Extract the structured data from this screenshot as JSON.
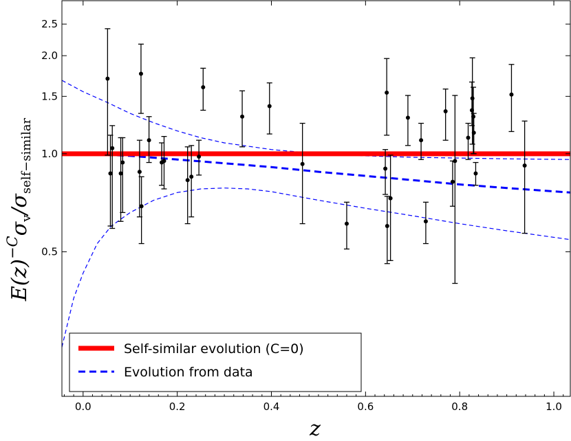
{
  "chart_data": {
    "type": "scatter",
    "xlabel": "z",
    "ylabel_parts": {
      "base": "E(z)",
      "exponent": "−C",
      "sigma1": "σ",
      "sub1": "v",
      "slash": "/",
      "sigma2": "σ",
      "sub2": "self−similar"
    },
    "x_range": [
      -0.045,
      1.035
    ],
    "y_range": [
      0.18,
      2.95
    ],
    "y_scale": "log",
    "x_ticks": [
      0.0,
      0.2,
      0.4,
      0.6,
      0.8,
      1.0
    ],
    "x_tick_labels": [
      "0.0",
      "0.2",
      "0.4",
      "0.6",
      "0.8",
      "1.0"
    ],
    "y_ticks": [
      0.5,
      1.0,
      1.5,
      2.0,
      2.5
    ],
    "y_tick_labels": [
      "0.5",
      "1.0",
      "1.5",
      "2.0",
      "2.5"
    ],
    "legend": {
      "position": "lower-left",
      "entries": [
        {
          "label": "Self-similar evolution (C=0)",
          "color": "#ff0000",
          "style": "solid"
        },
        {
          "label": "Evolution from data",
          "color": "#0000ff",
          "style": "dashed"
        }
      ]
    },
    "self_similar_line": {
      "y": 1.0,
      "color": "#ff0000"
    },
    "evolution_curves": {
      "color": "#0000ff",
      "central": {
        "x": [
          -0.045,
          0.0,
          0.1,
          0.2,
          0.3,
          0.4,
          0.5,
          0.6,
          0.7,
          0.8,
          0.9,
          1.035
        ],
        "y": [
          1.0,
          1.0,
          0.985,
          0.96,
          0.935,
          0.91,
          0.88,
          0.855,
          0.83,
          0.805,
          0.785,
          0.76
        ]
      },
      "upper": {
        "x": [
          -0.045,
          0.0,
          0.05,
          0.1,
          0.15,
          0.2,
          0.25,
          0.3,
          0.4,
          0.5,
          0.6,
          0.7,
          0.8,
          0.9,
          1.035
        ],
        "y": [
          1.68,
          1.55,
          1.44,
          1.33,
          1.245,
          1.175,
          1.12,
          1.08,
          1.03,
          1.0,
          0.985,
          0.975,
          0.97,
          0.965,
          0.96
        ]
      },
      "lower": {
        "x": [
          -0.045,
          -0.02,
          0.0,
          0.03,
          0.06,
          0.1,
          0.15,
          0.2,
          0.25,
          0.3,
          0.35,
          0.4,
          0.5,
          0.6,
          0.7,
          0.8,
          0.9,
          1.035
        ],
        "y": [
          0.255,
          0.36,
          0.43,
          0.53,
          0.6,
          0.66,
          0.72,
          0.76,
          0.78,
          0.785,
          0.78,
          0.765,
          0.72,
          0.68,
          0.645,
          0.61,
          0.58,
          0.545
        ]
      }
    },
    "points": [
      {
        "x": 0.052,
        "y": 1.7,
        "lo": 0.99,
        "hi": 2.42
      },
      {
        "x": 0.058,
        "y": 0.87,
        "lo": 0.6,
        "hi": 1.14
      },
      {
        "x": 0.062,
        "y": 1.04,
        "lo": 0.59,
        "hi": 1.22
      },
      {
        "x": 0.08,
        "y": 0.87,
        "lo": 0.62,
        "hi": 1.12
      },
      {
        "x": 0.084,
        "y": 0.94,
        "lo": 0.66,
        "hi": 1.12
      },
      {
        "x": 0.12,
        "y": 0.88,
        "lo": 0.64,
        "hi": 1.1
      },
      {
        "x": 0.123,
        "y": 1.76,
        "lo": 1.33,
        "hi": 2.17
      },
      {
        "x": 0.124,
        "y": 0.69,
        "lo": 0.53,
        "hi": 0.85
      },
      {
        "x": 0.14,
        "y": 1.1,
        "lo": 0.94,
        "hi": 1.3
      },
      {
        "x": 0.167,
        "y": 0.94,
        "lo": 0.8,
        "hi": 1.08
      },
      {
        "x": 0.172,
        "y": 0.95,
        "lo": 0.78,
        "hi": 1.13
      },
      {
        "x": 0.222,
        "y": 0.83,
        "lo": 0.61,
        "hi": 1.05
      },
      {
        "x": 0.23,
        "y": 0.85,
        "lo": 0.64,
        "hi": 1.06
      },
      {
        "x": 0.246,
        "y": 0.98,
        "lo": 0.86,
        "hi": 1.1
      },
      {
        "x": 0.255,
        "y": 1.6,
        "lo": 1.36,
        "hi": 1.83
      },
      {
        "x": 0.338,
        "y": 1.3,
        "lo": 1.05,
        "hi": 1.56
      },
      {
        "x": 0.396,
        "y": 1.4,
        "lo": 1.15,
        "hi": 1.65
      },
      {
        "x": 0.466,
        "y": 0.93,
        "lo": 0.61,
        "hi": 1.24
      },
      {
        "x": 0.56,
        "y": 0.61,
        "lo": 0.51,
        "hi": 0.71
      },
      {
        "x": 0.642,
        "y": 0.9,
        "lo": 0.75,
        "hi": 1.03
      },
      {
        "x": 0.645,
        "y": 1.54,
        "lo": 1.14,
        "hi": 1.96
      },
      {
        "x": 0.646,
        "y": 0.6,
        "lo": 0.46,
        "hi": 0.74
      },
      {
        "x": 0.653,
        "y": 0.73,
        "lo": 0.47,
        "hi": 0.99
      },
      {
        "x": 0.69,
        "y": 1.29,
        "lo": 1.06,
        "hi": 1.51
      },
      {
        "x": 0.718,
        "y": 1.1,
        "lo": 0.96,
        "hi": 1.24
      },
      {
        "x": 0.728,
        "y": 0.62,
        "lo": 0.53,
        "hi": 0.71
      },
      {
        "x": 0.77,
        "y": 1.35,
        "lo": 1.1,
        "hi": 1.58
      },
      {
        "x": 0.785,
        "y": 0.82,
        "lo": 0.69,
        "hi": 0.95
      },
      {
        "x": 0.79,
        "y": 0.95,
        "lo": 0.4,
        "hi": 1.51
      },
      {
        "x": 0.818,
        "y": 1.12,
        "lo": 0.96,
        "hi": 1.24
      },
      {
        "x": 0.826,
        "y": 1.36,
        "lo": 1.22,
        "hi": 1.66
      },
      {
        "x": 0.827,
        "y": 1.48,
        "lo": 1.07,
        "hi": 1.97
      },
      {
        "x": 0.829,
        "y": 1.3,
        "lo": 1.0,
        "hi": 1.6
      },
      {
        "x": 0.83,
        "y": 1.16,
        "lo": 1.0,
        "hi": 1.33
      },
      {
        "x": 0.834,
        "y": 0.87,
        "lo": 0.8,
        "hi": 0.94
      },
      {
        "x": 0.91,
        "y": 1.52,
        "lo": 1.17,
        "hi": 1.88
      },
      {
        "x": 0.938,
        "y": 0.92,
        "lo": 0.57,
        "hi": 1.26
      }
    ]
  }
}
